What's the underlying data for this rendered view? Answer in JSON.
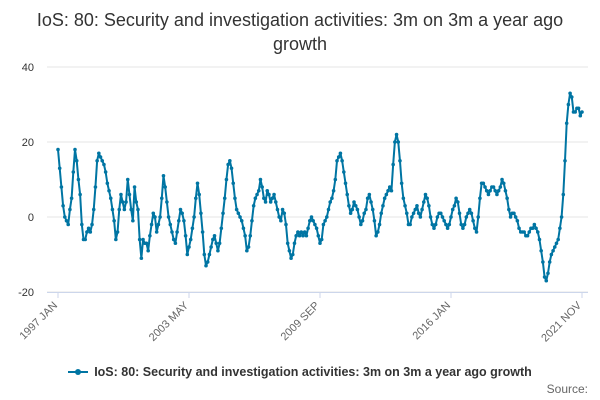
{
  "title": "IoS: 80: Security and investigation activities: 3m on 3m a year ago growth",
  "source_label": "Source:",
  "colors": {
    "series": "#0075a3",
    "grid": "#e6e6e6",
    "axis": "#ccd6eb"
  },
  "chart_data": {
    "type": "line",
    "title": "IoS: 80: Security and investigation activities: 3m on 3m a year ago growth",
    "xlabel": "",
    "ylabel": "",
    "ylim": [
      -20,
      40
    ],
    "yticks": [
      -20,
      0,
      20,
      40
    ],
    "x_start": "1997 JAN",
    "x_end": "2021 NOV",
    "x_ticks": [
      "1997 JAN",
      "2003 MAY",
      "2009 SEP",
      "2016 JAN",
      "2021 NOV"
    ],
    "grid": true,
    "legend_position": "bottom",
    "series": [
      {
        "name": "IoS: 80: Security and investigation activities: 3m on 3m a year ago growth",
        "marker": "circle",
        "values": [
          18,
          13,
          8,
          3,
          0,
          -1,
          -2,
          2,
          5,
          12,
          18,
          15,
          10,
          6,
          -2,
          -6,
          -6,
          -4,
          -3,
          -4,
          -2,
          2,
          8,
          15,
          17,
          16,
          15,
          14,
          12,
          9,
          7,
          5,
          2,
          -1,
          -6,
          -4,
          2,
          6,
          4,
          2,
          4,
          10,
          6,
          2,
          -1,
          8,
          4,
          2,
          -6,
          -11,
          -6,
          -7,
          -7,
          -9,
          -5,
          -2,
          1,
          0,
          -4,
          -2,
          0,
          5,
          11,
          8,
          4,
          0,
          -2,
          -4,
          -6,
          -7,
          -4,
          -1,
          2,
          1,
          -1,
          -5,
          -10,
          -8,
          -6,
          -3,
          0,
          5,
          9,
          6,
          1,
          -4,
          -10,
          -13,
          -12,
          -10,
          -8,
          -6,
          -5,
          -7,
          -9,
          -7,
          -3,
          1,
          5,
          10,
          14,
          15,
          13,
          9,
          5,
          2,
          1,
          0,
          -1,
          -3,
          -5,
          -9,
          -8,
          -5,
          -1,
          3,
          5,
          6,
          7,
          10,
          8,
          5,
          4,
          7,
          6,
          4,
          5,
          6,
          4,
          2,
          0,
          -1,
          2,
          1,
          -2,
          -7,
          -9,
          -11,
          -10,
          -7,
          -5,
          -4,
          -5,
          -4,
          -5,
          -4,
          -5,
          -3,
          -1,
          0,
          -1,
          -2,
          -3,
          -5,
          -7,
          -6,
          -2,
          -1,
          0,
          2,
          4,
          5,
          7,
          10,
          15,
          16,
          17,
          15,
          12,
          9,
          6,
          3,
          1,
          2,
          4,
          3,
          2,
          0,
          -2,
          -1,
          1,
          2,
          5,
          6,
          4,
          2,
          -1,
          -5,
          -4,
          -2,
          1,
          3,
          5,
          6,
          7,
          8,
          7,
          14,
          20,
          22,
          20,
          15,
          9,
          5,
          3,
          1,
          -2,
          -2,
          0,
          1,
          2,
          3,
          1,
          0,
          2,
          4,
          6,
          5,
          3,
          0,
          -2,
          -3,
          -2,
          0,
          1,
          1,
          0,
          -1,
          -2,
          -3,
          -2,
          0,
          2,
          3,
          5,
          4,
          1,
          -2,
          -3,
          -2,
          0,
          1,
          2,
          1,
          -1,
          -3,
          -4,
          0,
          5,
          9,
          9,
          8,
          7,
          6,
          7,
          8,
          8,
          7,
          6,
          7,
          8,
          10,
          9,
          7,
          5,
          2,
          0,
          1,
          1,
          0,
          -1,
          -3,
          -4,
          -4,
          -4,
          -5,
          -5,
          -4,
          -3,
          -3,
          -2,
          -3,
          -4,
          -6,
          -9,
          -12,
          -16,
          -17,
          -15,
          -12,
          -10,
          -9,
          -8,
          -7,
          -6,
          -3,
          0,
          6,
          15,
          25,
          30,
          33,
          32,
          28,
          28,
          29,
          29,
          27,
          28
        ]
      }
    ]
  }
}
